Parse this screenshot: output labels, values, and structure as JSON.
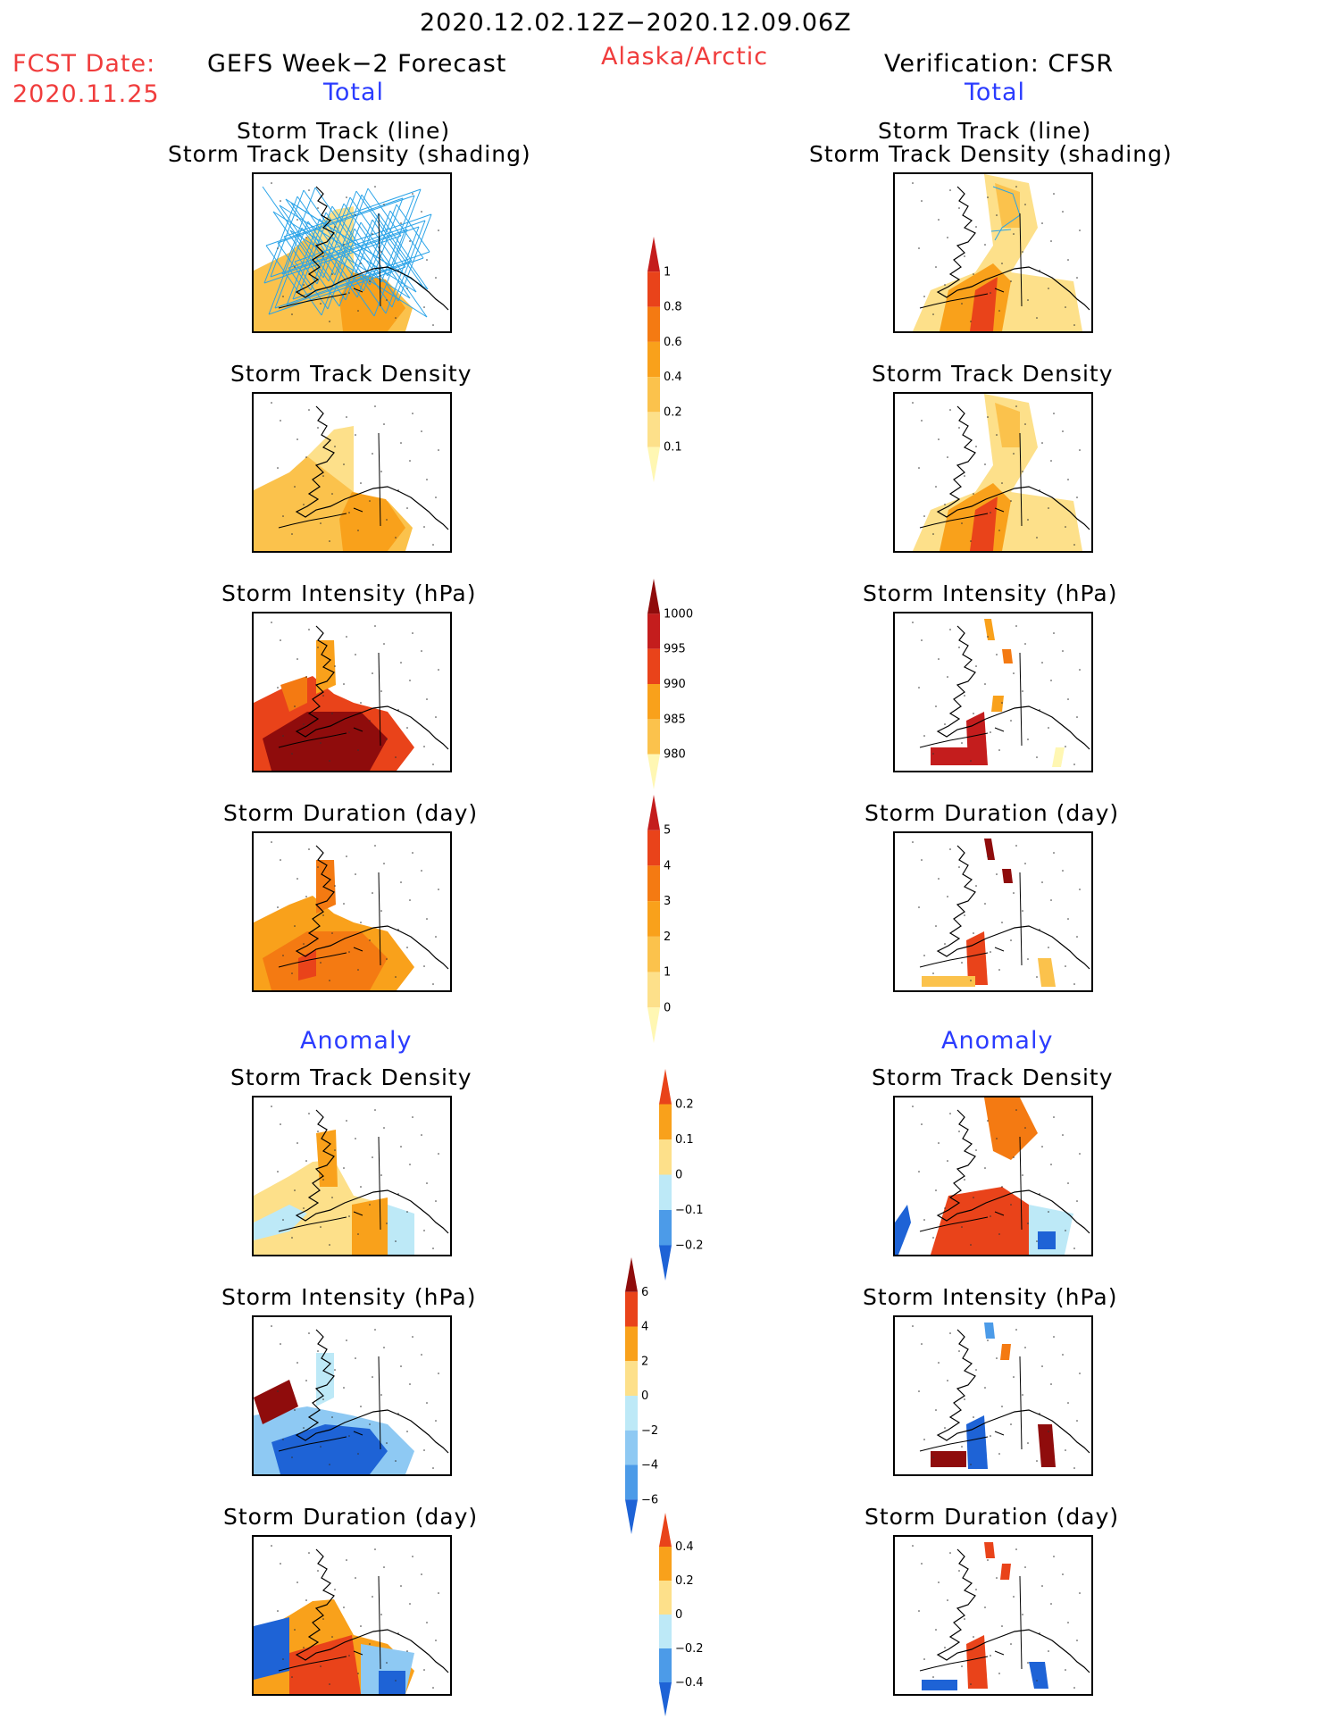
{
  "header": {
    "date_range": "2020.12.02.12Z−2020.12.09.06Z",
    "fcst_label": "FCST Date:",
    "fcst_date": "2020.11.25",
    "left_title": "GEFS Week−2 Forecast",
    "region": "Alaska/Arctic",
    "right_title": "Verification: CFSR"
  },
  "sections": {
    "total": "Total",
    "anomaly": "Anomaly"
  },
  "panel_titles": {
    "track_line": "Storm Track (line)",
    "track_shading": "Storm Track Density (shading)",
    "density": "Storm Track Density",
    "intensity": "Storm Intensity (hPa)",
    "duration": "Storm Duration (day)"
  },
  "colorbars": {
    "density_total": [
      "1",
      "0.8",
      "0.6",
      "0.4",
      "0.2",
      "0.1"
    ],
    "intensity_total": [
      "1000",
      "995",
      "990",
      "985",
      "980"
    ],
    "duration_total": [
      "5",
      "4",
      "3",
      "2",
      "1",
      "0"
    ],
    "density_anom": [
      "0.2",
      "0.1",
      "0",
      "−0.1",
      "−0.2"
    ],
    "intensity_anom": [
      "6",
      "4",
      "2",
      "0",
      "−2",
      "−4",
      "−6"
    ],
    "duration_anom": [
      "0.4",
      "0.2",
      "0",
      "−0.2",
      "−0.4"
    ]
  },
  "colors": {
    "warm": [
      "#fff7b3",
      "#fde08a",
      "#fbc24c",
      "#f9a11b",
      "#f47a12",
      "#e9431a",
      "#c41d1d",
      "#8f0c0c"
    ],
    "cool": [
      "#bde9f7",
      "#8ec9f3",
      "#4c9be8",
      "#1e63d6"
    ],
    "track_line": "#29a3e8",
    "title_red": "#f03c3c",
    "title_blue": "#2b3cff"
  }
}
